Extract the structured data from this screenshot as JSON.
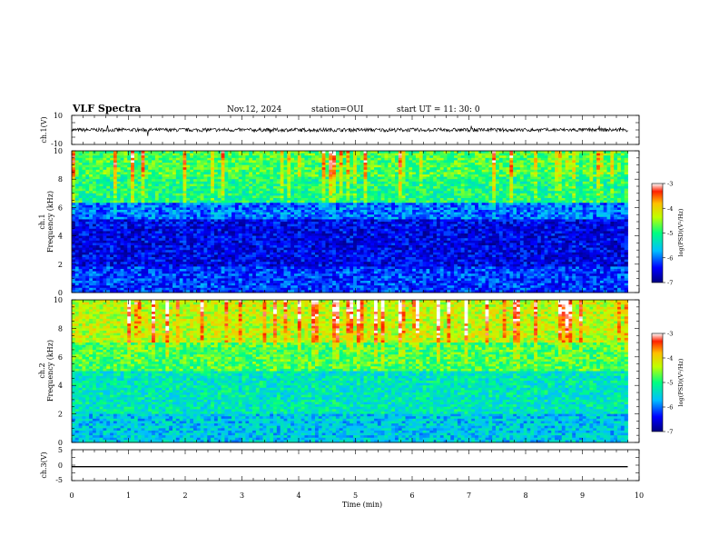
{
  "header": {
    "title": "VLF Spectra",
    "date": "Nov.12, 2024",
    "station": "station=OUI",
    "start": "start  UT =   11: 30: 0"
  },
  "chart_data": [
    {
      "type": "line",
      "panel": "ch1-waveform",
      "ylabel": "ch.1(V)",
      "ylim": [
        -10,
        10
      ],
      "yticks": [
        "10",
        "-10"
      ],
      "x_range_min": [
        0,
        9.8
      ],
      "level_V": 0,
      "noise_amplitude_V": 2.5
    },
    {
      "type": "heatmap",
      "panel": "ch1-spectrogram",
      "ylabel": "ch.1\nFrequency (kHz)",
      "ylim": [
        0,
        10
      ],
      "yticks": [
        "0",
        "2",
        "4",
        "6",
        "8",
        "10"
      ],
      "x_range_min": [
        0,
        9.8
      ],
      "colorbar": {
        "label": "log(PSD)(V²/Hz)",
        "range": [
          -7,
          -3
        ],
        "ticks": [
          "-3",
          "-4",
          "-5",
          "-6",
          "-7"
        ]
      },
      "bands_kHz": [
        {
          "from": 0,
          "to": 1.8,
          "level": -6.2
        },
        {
          "from": 1.8,
          "to": 5.2,
          "level": -6.5
        },
        {
          "from": 5.2,
          "to": 6.3,
          "level": -6.0
        },
        {
          "from": 6.3,
          "to": 8.2,
          "level": -5.0
        },
        {
          "from": 8.2,
          "to": 10,
          "level": -4.8
        }
      ]
    },
    {
      "type": "heatmap",
      "panel": "ch2-spectrogram",
      "ylabel": "ch.2\nFrequency (kHz)",
      "ylim": [
        0,
        10
      ],
      "yticks": [
        "0",
        "2",
        "4",
        "6",
        "8",
        "10"
      ],
      "x_range_min": [
        0,
        9.8
      ],
      "colorbar": {
        "label": "log(PSD)(V²/Hz)",
        "range": [
          -7,
          -3
        ],
        "ticks": [
          "-3",
          "-4",
          "-5",
          "-6",
          "-7"
        ]
      },
      "bands_kHz": [
        {
          "from": 0,
          "to": 2.0,
          "level": -5.6
        },
        {
          "from": 2.0,
          "to": 5.0,
          "level": -5.3
        },
        {
          "from": 5.0,
          "to": 7.0,
          "level": -4.8
        },
        {
          "from": 7.0,
          "to": 10,
          "level": -4.3
        }
      ]
    },
    {
      "type": "line",
      "panel": "ch3-waveform",
      "ylabel": "ch.3(V)",
      "ylim": [
        -5,
        5
      ],
      "yticks": [
        "5",
        "0",
        "-5"
      ],
      "x_range_min": [
        0,
        9.8
      ],
      "level_V": -0.5
    }
  ],
  "xaxis": {
    "label": "Time (min)",
    "range": [
      0,
      10
    ],
    "ticks": [
      "0",
      "1",
      "2",
      "3",
      "4",
      "5",
      "6",
      "7",
      "8",
      "9",
      "10"
    ]
  }
}
